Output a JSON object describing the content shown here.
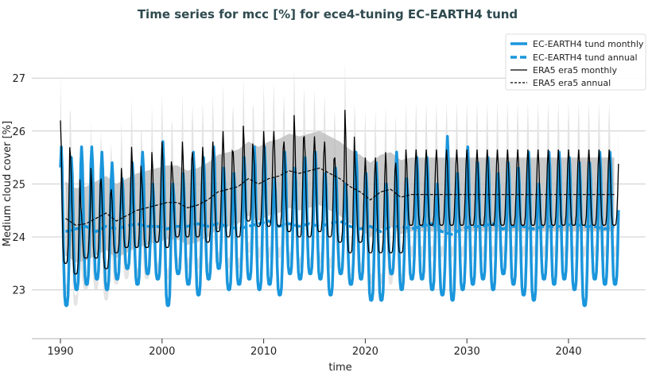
{
  "chart_data": {
    "type": "line",
    "title": "Time series for mcc [%] for ece4-tuning EC-EARTH4 tund",
    "xlabel": "time",
    "ylabel": "Medium cloud cover [%]",
    "xlim": [
      1987.2,
      2046.6
    ],
    "ylim": [
      22.07,
      27.6
    ],
    "xticks": [
      1990,
      2000,
      2010,
      2020,
      2030,
      2040
    ],
    "yticks": [
      23,
      24,
      25,
      26,
      27
    ],
    "grid": "horizontal",
    "legend_placement": "top-right",
    "legend": [
      "EC-EARTH4 tund monthly",
      "EC-EARTH4 tund annual",
      "ERA5 era5 monthly",
      "ERA5 era5 annual"
    ],
    "colors": {
      "model": "#1a96dc",
      "era5": "#000000",
      "band_dark": "#b4b4b4",
      "band_light": "#dcdcdc",
      "title": "#2f4a4f"
    },
    "years_start": 1990,
    "model_monthly_yearly_max": [
      25.7,
      25.5,
      25.7,
      25.7,
      25.6,
      25.4,
      25.1,
      25.4,
      25.6,
      25.0,
      25.8,
      25.0,
      25.2,
      25.6,
      25.5,
      25.7,
      25.3,
      25.2,
      25.5,
      25.7,
      25.7,
      25.1,
      25.6,
      25.3,
      25.5,
      25.6,
      25.2,
      25.3,
      25.0,
      25.6,
      25.2,
      25.4,
      25.0,
      25.6,
      25.1,
      25.5,
      25.5,
      25.0,
      25.9,
      25.2,
      25.7,
      25.4,
      25.5,
      25.2,
      25.4,
      25.3,
      25.6,
      25.0,
      25.6,
      25.6,
      25.5,
      25.4,
      25.4,
      25.6,
      25.6
    ],
    "model_monthly_yearly_min": [
      22.7,
      23.0,
      23.1,
      23.2,
      23.0,
      23.2,
      23.4,
      23.1,
      23.3,
      23.2,
      22.7,
      23.3,
      23.1,
      22.9,
      23.2,
      23.4,
      23.0,
      23.1,
      23.2,
      23.0,
      23.1,
      22.9,
      23.3,
      23.2,
      23.3,
      23.2,
      22.9,
      23.3,
      23.1,
      23.2,
      22.8,
      22.8,
      23.3,
      23.0,
      23.2,
      23.2,
      23.0,
      22.9,
      22.8,
      23.0,
      23.1,
      23.2,
      23.0,
      23.3,
      23.1,
      22.9,
      22.8,
      23.2,
      23.1,
      23.2,
      23.0,
      22.7,
      23.2,
      23.1,
      23.1
    ],
    "model_annual": [
      24.1,
      24.15,
      24.2,
      24.1,
      24.2,
      24.15,
      24.2,
      24.25,
      24.2,
      24.2,
      24.15,
      24.2,
      24.2,
      24.25,
      24.2,
      24.25,
      24.2,
      24.15,
      24.2,
      24.25,
      24.3,
      24.2,
      24.25,
      24.2,
      24.25,
      24.2,
      24.25,
      24.3,
      24.2,
      24.15,
      24.2,
      24.1,
      24.2,
      24.2,
      24.15,
      24.2,
      24.25,
      24.1,
      24.05,
      24.15,
      24.2,
      24.2,
      24.25,
      24.15,
      24.2,
      24.2,
      24.15,
      24.2,
      24.2,
      24.2,
      24.25,
      24.2,
      24.2,
      24.15,
      24.2
    ],
    "era5_monthly_yearly_max": [
      26.2,
      25.5,
      24.6,
      25.3,
      25.1,
      24.9,
      25.3,
      25.7,
      25.1,
      25.6,
      25.8,
      25.3,
      25.8,
      25.6,
      25.7,
      25.8,
      26.0,
      25.6,
      26.1,
      25.6,
      26.0,
      26.0,
      25.8,
      26.3,
      25.9,
      25.9,
      25.8,
      25.5,
      26.4,
      25.4,
      25.5,
      25.5,
      25.6,
      25.4,
      25.65,
      25.65,
      25.65,
      25.65,
      25.65,
      25.65,
      25.65,
      25.65,
      25.65,
      25.65,
      25.65,
      25.65,
      25.65,
      25.65,
      25.65,
      25.65,
      25.65,
      25.65,
      25.65,
      25.65,
      25.65
    ],
    "era5_monthly_yearly_min": [
      23.5,
      23.3,
      23.6,
      23.6,
      23.4,
      23.7,
      23.8,
      23.8,
      23.8,
      23.9,
      23.8,
      24.0,
      24.0,
      24.0,
      23.9,
      24.1,
      24.0,
      24.0,
      24.3,
      24.2,
      24.2,
      24.2,
      24.1,
      24.0,
      24.0,
      24.1,
      24.0,
      23.9,
      23.7,
      23.9,
      23.7,
      23.7,
      23.7,
      23.7,
      24.22,
      24.22,
      24.22,
      24.22,
      24.22,
      24.22,
      24.22,
      24.22,
      24.22,
      24.22,
      24.22,
      24.22,
      24.22,
      24.22,
      24.22,
      24.22,
      24.22,
      24.22,
      24.22,
      24.22,
      24.22
    ],
    "era5_annual": [
      24.35,
      24.22,
      24.25,
      24.35,
      24.45,
      24.3,
      24.4,
      24.5,
      24.55,
      24.6,
      24.65,
      24.65,
      24.55,
      24.6,
      24.7,
      24.85,
      24.9,
      24.95,
      25.1,
      25.0,
      25.1,
      25.15,
      25.25,
      25.2,
      25.25,
      25.3,
      25.2,
      25.1,
      24.95,
      24.85,
      24.7,
      24.85,
      24.9,
      24.75,
      24.8,
      24.8,
      24.8,
      24.8,
      24.8,
      24.8,
      24.8,
      24.8,
      24.8,
      24.8,
      24.8,
      24.8,
      24.8,
      24.8,
      24.8,
      24.8,
      24.8,
      24.8,
      24.8,
      24.8,
      24.8
    ],
    "era5_std_band": 0.7,
    "era5_envelope_band": 1.3
  }
}
